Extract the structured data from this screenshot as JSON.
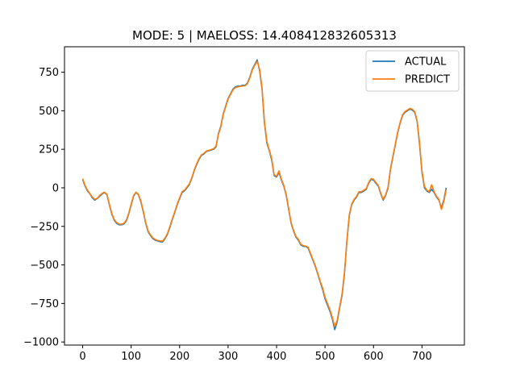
{
  "chart_data": {
    "type": "line",
    "title": "MODE: 5 | MAELOSS: 14.408412832605313",
    "xlabel": "",
    "ylabel": "",
    "xlim": [
      -37.5,
      787.5
    ],
    "ylim": [
      -1020,
      915
    ],
    "xticks": [
      0,
      100,
      200,
      300,
      400,
      500,
      600,
      700
    ],
    "yticks": [
      -1000,
      -750,
      -500,
      -250,
      0,
      250,
      500,
      750
    ],
    "grid": false,
    "legend": "top-right",
    "series": [
      {
        "name": "ACTUAL",
        "color": "#1f77b4",
        "points": [
          [
            0,
            55
          ],
          [
            5,
            10
          ],
          [
            10,
            -20
          ],
          [
            15,
            -40
          ],
          [
            20,
            -65
          ],
          [
            25,
            -80
          ],
          [
            30,
            -70
          ],
          [
            35,
            -55
          ],
          [
            40,
            -40
          ],
          [
            45,
            -30
          ],
          [
            50,
            -45
          ],
          [
            55,
            -110
          ],
          [
            60,
            -170
          ],
          [
            65,
            -210
          ],
          [
            70,
            -230
          ],
          [
            75,
            -240
          ],
          [
            80,
            -240
          ],
          [
            85,
            -235
          ],
          [
            90,
            -215
          ],
          [
            95,
            -170
          ],
          [
            100,
            -110
          ],
          [
            105,
            -55
          ],
          [
            110,
            -30
          ],
          [
            115,
            -45
          ],
          [
            120,
            -90
          ],
          [
            125,
            -155
          ],
          [
            130,
            -230
          ],
          [
            135,
            -285
          ],
          [
            140,
            -310
          ],
          [
            145,
            -330
          ],
          [
            150,
            -340
          ],
          [
            155,
            -345
          ],
          [
            160,
            -350
          ],
          [
            165,
            -350
          ],
          [
            170,
            -330
          ],
          [
            175,
            -300
          ],
          [
            180,
            -255
          ],
          [
            185,
            -205
          ],
          [
            190,
            -160
          ],
          [
            195,
            -110
          ],
          [
            200,
            -70
          ],
          [
            205,
            -30
          ],
          [
            210,
            -20
          ],
          [
            215,
            0
          ],
          [
            220,
            20
          ],
          [
            225,
            60
          ],
          [
            230,
            110
          ],
          [
            235,
            150
          ],
          [
            240,
            185
          ],
          [
            245,
            210
          ],
          [
            250,
            220
          ],
          [
            255,
            235
          ],
          [
            260,
            240
          ],
          [
            265,
            245
          ],
          [
            270,
            250
          ],
          [
            275,
            265
          ],
          [
            280,
            350
          ],
          [
            285,
            400
          ],
          [
            290,
            480
          ],
          [
            295,
            530
          ],
          [
            300,
            580
          ],
          [
            305,
            610
          ],
          [
            310,
            640
          ],
          [
            315,
            655
          ],
          [
            320,
            660
          ],
          [
            325,
            660
          ],
          [
            330,
            665
          ],
          [
            335,
            665
          ],
          [
            340,
            680
          ],
          [
            345,
            720
          ],
          [
            350,
            770
          ],
          [
            355,
            800
          ],
          [
            360,
            830
          ],
          [
            365,
            760
          ],
          [
            370,
            640
          ],
          [
            375,
            420
          ],
          [
            380,
            290
          ],
          [
            385,
            240
          ],
          [
            390,
            180
          ],
          [
            395,
            80
          ],
          [
            400,
            70
          ],
          [
            405,
            100
          ],
          [
            410,
            50
          ],
          [
            415,
            10
          ],
          [
            420,
            -50
          ],
          [
            425,
            -140
          ],
          [
            430,
            -230
          ],
          [
            435,
            -280
          ],
          [
            440,
            -320
          ],
          [
            445,
            -340
          ],
          [
            450,
            -370
          ],
          [
            455,
            -380
          ],
          [
            460,
            -380
          ],
          [
            465,
            -390
          ],
          [
            470,
            -430
          ],
          [
            475,
            -470
          ],
          [
            480,
            -510
          ],
          [
            485,
            -560
          ],
          [
            490,
            -610
          ],
          [
            495,
            -660
          ],
          [
            500,
            -720
          ],
          [
            505,
            -760
          ],
          [
            510,
            -800
          ],
          [
            515,
            -850
          ],
          [
            520,
            -920
          ],
          [
            525,
            -870
          ],
          [
            530,
            -780
          ],
          [
            535,
            -700
          ],
          [
            540,
            -560
          ],
          [
            545,
            -350
          ],
          [
            550,
            -180
          ],
          [
            555,
            -110
          ],
          [
            560,
            -80
          ],
          [
            565,
            -60
          ],
          [
            570,
            -30
          ],
          [
            575,
            -30
          ],
          [
            580,
            -20
          ],
          [
            585,
            -10
          ],
          [
            590,
            30
          ],
          [
            595,
            55
          ],
          [
            600,
            50
          ],
          [
            605,
            30
          ],
          [
            610,
            10
          ],
          [
            615,
            -40
          ],
          [
            620,
            -80
          ],
          [
            625,
            -50
          ],
          [
            630,
            0
          ],
          [
            635,
            120
          ],
          [
            640,
            200
          ],
          [
            645,
            280
          ],
          [
            650,
            360
          ],
          [
            655,
            420
          ],
          [
            660,
            470
          ],
          [
            665,
            490
          ],
          [
            670,
            500
          ],
          [
            675,
            510
          ],
          [
            680,
            505
          ],
          [
            685,
            490
          ],
          [
            690,
            430
          ],
          [
            695,
            280
          ],
          [
            700,
            100
          ],
          [
            705,
            0
          ],
          [
            710,
            -20
          ],
          [
            715,
            -30
          ],
          [
            720,
            -10
          ],
          [
            725,
            -30
          ],
          [
            730,
            -60
          ],
          [
            735,
            -80
          ],
          [
            740,
            -130
          ],
          [
            745,
            -80
          ],
          [
            750,
            0
          ]
        ]
      },
      {
        "name": "PREDICT",
        "color": "#ff7f0e",
        "points": [
          [
            0,
            60
          ],
          [
            5,
            15
          ],
          [
            10,
            -15
          ],
          [
            15,
            -38
          ],
          [
            20,
            -60
          ],
          [
            25,
            -75
          ],
          [
            30,
            -68
          ],
          [
            35,
            -50
          ],
          [
            40,
            -36
          ],
          [
            45,
            -28
          ],
          [
            50,
            -42
          ],
          [
            55,
            -105
          ],
          [
            60,
            -165
          ],
          [
            65,
            -205
          ],
          [
            70,
            -225
          ],
          [
            75,
            -235
          ],
          [
            80,
            -236
          ],
          [
            85,
            -230
          ],
          [
            90,
            -210
          ],
          [
            95,
            -165
          ],
          [
            100,
            -105
          ],
          [
            105,
            -50
          ],
          [
            110,
            -28
          ],
          [
            115,
            -42
          ],
          [
            120,
            -85
          ],
          [
            125,
            -150
          ],
          [
            130,
            -225
          ],
          [
            135,
            -280
          ],
          [
            140,
            -305
          ],
          [
            145,
            -325
          ],
          [
            150,
            -335
          ],
          [
            155,
            -342
          ],
          [
            160,
            -345
          ],
          [
            165,
            -345
          ],
          [
            170,
            -325
          ],
          [
            175,
            -295
          ],
          [
            180,
            -250
          ],
          [
            185,
            -200
          ],
          [
            190,
            -155
          ],
          [
            195,
            -105
          ],
          [
            200,
            -65
          ],
          [
            205,
            -25
          ],
          [
            210,
            -15
          ],
          [
            215,
            5
          ],
          [
            220,
            25
          ],
          [
            225,
            65
          ],
          [
            230,
            115
          ],
          [
            235,
            155
          ],
          [
            240,
            190
          ],
          [
            245,
            214
          ],
          [
            250,
            224
          ],
          [
            255,
            238
          ],
          [
            260,
            243
          ],
          [
            265,
            248
          ],
          [
            270,
            254
          ],
          [
            275,
            270
          ],
          [
            280,
            345
          ],
          [
            285,
            395
          ],
          [
            290,
            475
          ],
          [
            295,
            525
          ],
          [
            300,
            575
          ],
          [
            305,
            605
          ],
          [
            310,
            635
          ],
          [
            315,
            650
          ],
          [
            320,
            655
          ],
          [
            325,
            658
          ],
          [
            330,
            660
          ],
          [
            335,
            662
          ],
          [
            340,
            675
          ],
          [
            345,
            715
          ],
          [
            350,
            765
          ],
          [
            355,
            795
          ],
          [
            360,
            820
          ],
          [
            365,
            770
          ],
          [
            370,
            650
          ],
          [
            375,
            430
          ],
          [
            380,
            300
          ],
          [
            385,
            245
          ],
          [
            390,
            190
          ],
          [
            395,
            85
          ],
          [
            400,
            75
          ],
          [
            405,
            110
          ],
          [
            410,
            55
          ],
          [
            415,
            15
          ],
          [
            420,
            -45
          ],
          [
            425,
            -135
          ],
          [
            430,
            -225
          ],
          [
            435,
            -275
          ],
          [
            440,
            -315
          ],
          [
            445,
            -335
          ],
          [
            450,
            -365
          ],
          [
            455,
            -375
          ],
          [
            460,
            -378
          ],
          [
            465,
            -385
          ],
          [
            470,
            -425
          ],
          [
            475,
            -465
          ],
          [
            480,
            -505
          ],
          [
            485,
            -555
          ],
          [
            490,
            -605
          ],
          [
            495,
            -650
          ],
          [
            500,
            -710
          ],
          [
            505,
            -750
          ],
          [
            510,
            -790
          ],
          [
            515,
            -840
          ],
          [
            520,
            -900
          ],
          [
            525,
            -860
          ],
          [
            530,
            -775
          ],
          [
            535,
            -690
          ],
          [
            540,
            -550
          ],
          [
            545,
            -345
          ],
          [
            550,
            -175
          ],
          [
            555,
            -105
          ],
          [
            560,
            -75
          ],
          [
            565,
            -55
          ],
          [
            570,
            -25
          ],
          [
            575,
            -25
          ],
          [
            580,
            -15
          ],
          [
            585,
            -5
          ],
          [
            590,
            35
          ],
          [
            595,
            60
          ],
          [
            600,
            55
          ],
          [
            605,
            35
          ],
          [
            610,
            15
          ],
          [
            615,
            -35
          ],
          [
            620,
            -75
          ],
          [
            625,
            -45
          ],
          [
            630,
            5
          ],
          [
            635,
            125
          ],
          [
            640,
            205
          ],
          [
            645,
            285
          ],
          [
            650,
            365
          ],
          [
            655,
            425
          ],
          [
            660,
            475
          ],
          [
            665,
            495
          ],
          [
            670,
            505
          ],
          [
            675,
            515
          ],
          [
            680,
            510
          ],
          [
            685,
            495
          ],
          [
            690,
            435
          ],
          [
            695,
            290
          ],
          [
            700,
            110
          ],
          [
            705,
            10
          ],
          [
            710,
            -15
          ],
          [
            715,
            -25
          ],
          [
            720,
            20
          ],
          [
            725,
            -25
          ],
          [
            730,
            -55
          ],
          [
            735,
            -75
          ],
          [
            740,
            -140
          ],
          [
            745,
            -90
          ],
          [
            750,
            -10
          ]
        ]
      }
    ]
  }
}
